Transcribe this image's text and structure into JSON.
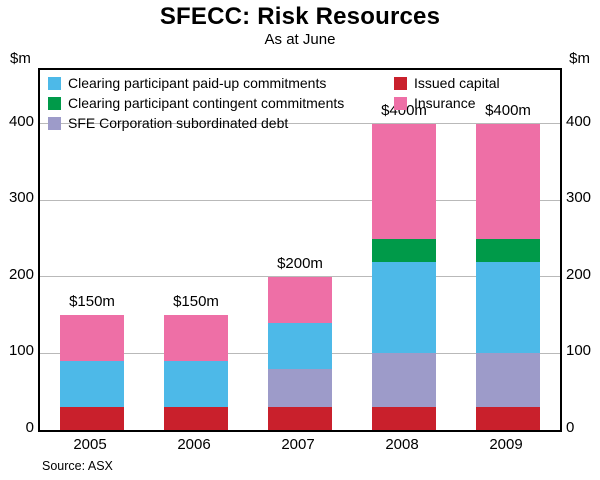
{
  "chart_data": {
    "type": "bar",
    "stacked": true,
    "title": "SFECC: Risk Resources",
    "subtitle": "As at June",
    "unit_left": "$m",
    "unit_right": "$m",
    "source": "Source: ASX",
    "categories": [
      "2005",
      "2006",
      "2007",
      "2008",
      "2009"
    ],
    "series": [
      {
        "name": "Issued capital",
        "color": "#c9202c",
        "values": [
          30,
          30,
          30,
          30,
          30
        ]
      },
      {
        "name": "SFE Corporation subordinated debt",
        "color": "#9d9bc9",
        "values": [
          0,
          0,
          50,
          70,
          70
        ]
      },
      {
        "name": "Clearing participant paid-up commitments",
        "color": "#4db9e8",
        "values": [
          60,
          60,
          60,
          120,
          120
        ]
      },
      {
        "name": "Clearing participant contingent commitments",
        "color": "#009a49",
        "values": [
          0,
          0,
          0,
          30,
          30
        ]
      },
      {
        "name": "Insurance",
        "color": "#ee6fa6",
        "values": [
          60,
          60,
          60,
          150,
          150
        ]
      }
    ],
    "totals": [
      150,
      150,
      200,
      400,
      400
    ],
    "bar_labels": [
      "$150m",
      "$150m",
      "$200m",
      "$400m",
      "$400m"
    ],
    "yticks": [
      0,
      100,
      200,
      300,
      400
    ],
    "ylim": [
      0,
      470
    ],
    "grid": true,
    "legend_position": "top-left-inside",
    "legend_order": [
      {
        "label": "Clearing participant paid-up commitments",
        "color": "#4db9e8"
      },
      {
        "label": "Issued capital",
        "color": "#c9202c"
      },
      {
        "label": "Clearing participant contingent commitments",
        "color": "#009a49"
      },
      {
        "label": "Insurance",
        "color": "#ee6fa6"
      },
      {
        "label": "SFE Corporation subordinated debt",
        "color": "#9d9bc9"
      }
    ]
  }
}
